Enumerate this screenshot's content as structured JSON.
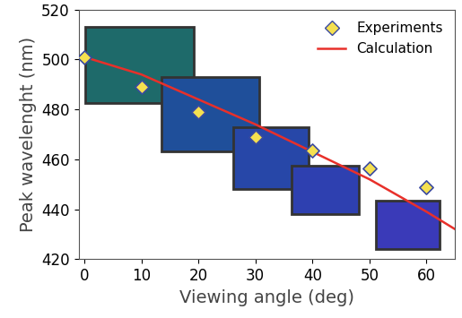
{
  "chart_data": {
    "type": "line",
    "x_label": "Viewing angle (deg)",
    "y_label": "Peak wavelenght (nm)",
    "xlim": [
      -1,
      65
    ],
    "xticks": [
      0,
      10,
      20,
      30,
      40,
      50,
      60
    ],
    "ylim": [
      420,
      520
    ],
    "yticks": [
      420,
      440,
      460,
      480,
      500,
      520
    ],
    "legend": "upper right",
    "series": [
      {
        "name": "Experiments",
        "type": "scatter",
        "marker": "diamond",
        "color": "#f5e050",
        "x": [
          0,
          10,
          20,
          30,
          40,
          50,
          60
        ],
        "values": [
          501,
          489,
          479,
          469,
          463.5,
          456.5,
          449
        ]
      },
      {
        "name": "Calculation",
        "type": "line",
        "line_style": "solid",
        "color": "#e8302a",
        "x": [
          0,
          10,
          20,
          30,
          40,
          50,
          60,
          65
        ],
        "values": [
          501,
          494,
          484,
          474,
          463,
          452,
          439,
          432
        ]
      }
    ]
  }
}
